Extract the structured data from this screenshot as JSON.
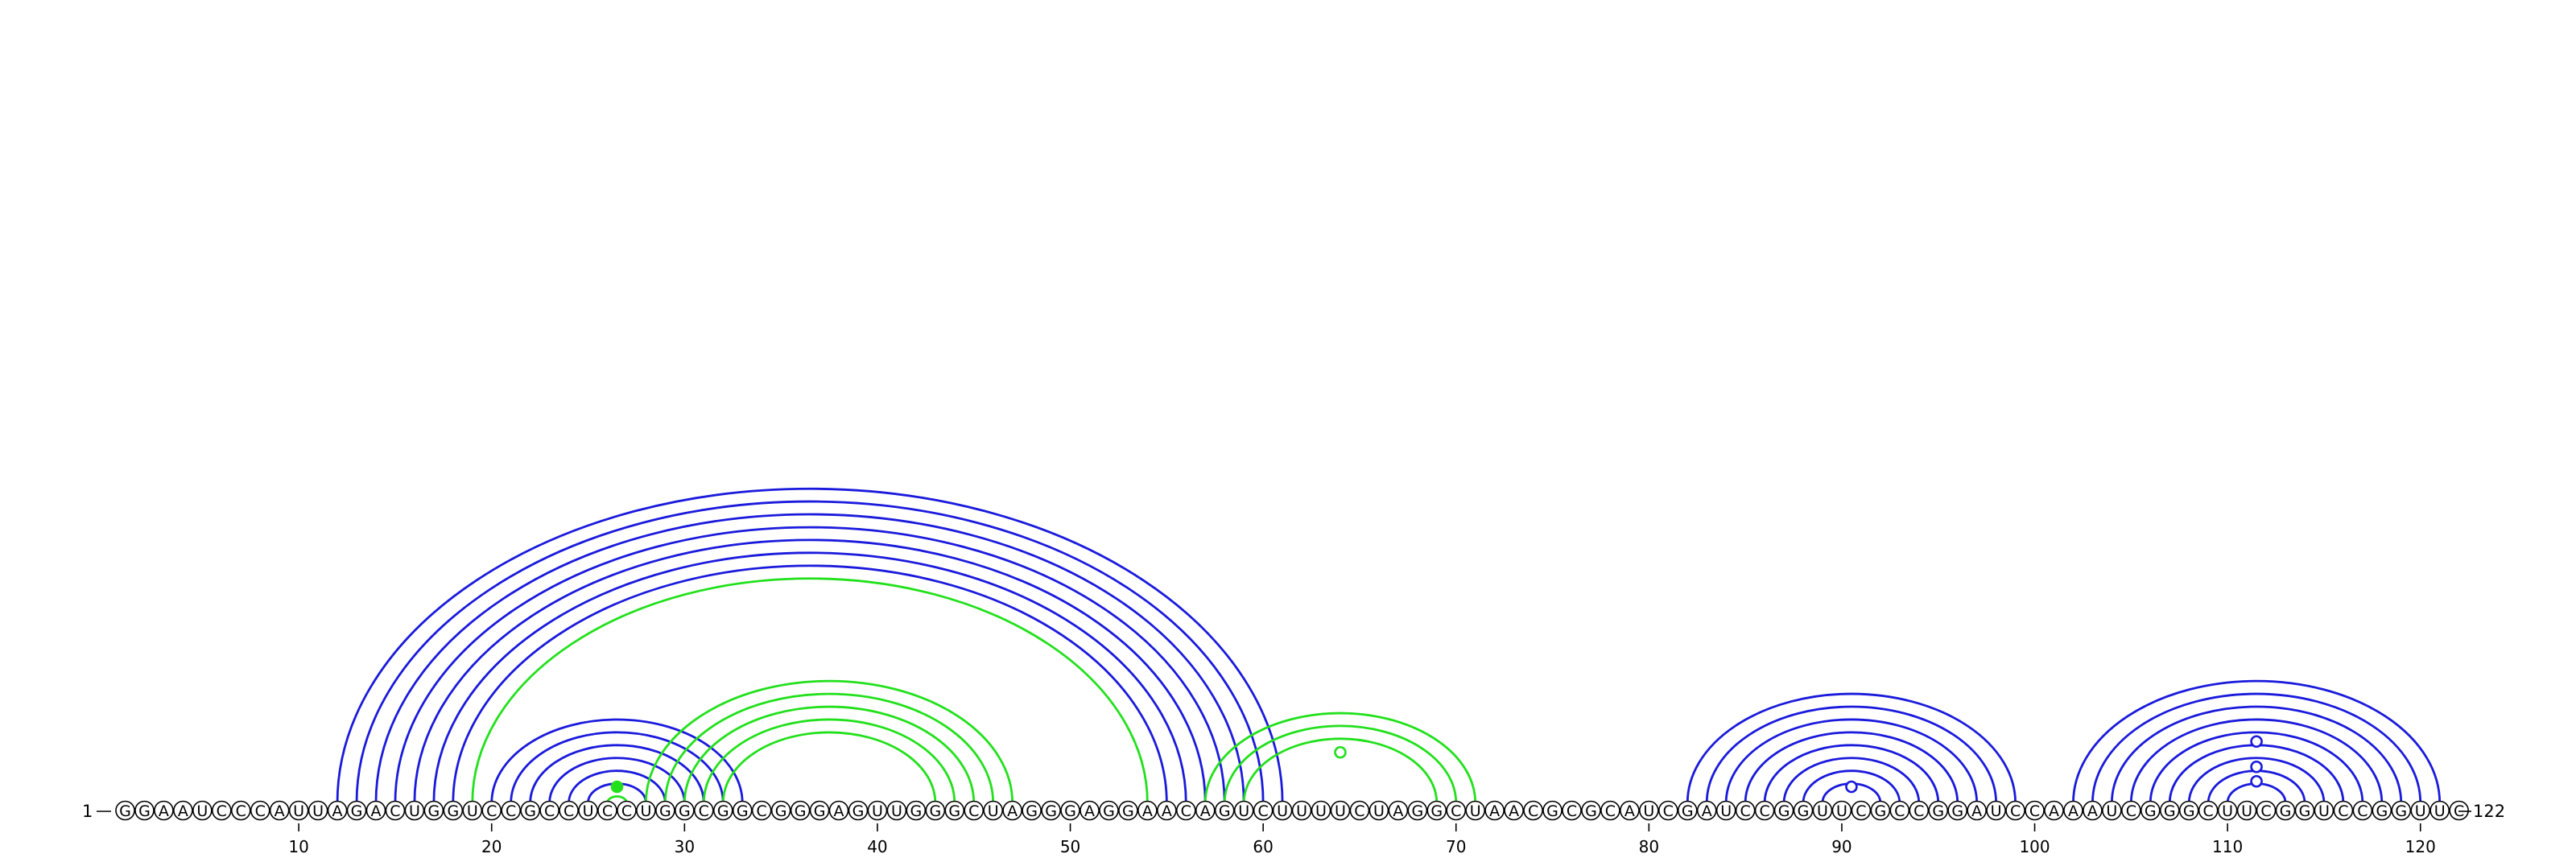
{
  "sequence": "GGAAUCCCAUUAGACUGGUCCGCCUCCUGGCGGCGGGAGUUGGGCUAGGGAGGAACAGUCUUUUCUAGGCUAACGCGCAUCGAUCCGGUUCGCCGGAUCCAAAUCGGGCUUCGGUCCGGUUC",
  "start_label": "1",
  "end_label": "122",
  "ticks": [
    "10",
    "20",
    "30",
    "40",
    "50",
    "60",
    "70",
    "80",
    "90",
    "100",
    "110",
    "120"
  ],
  "colors": {
    "blue": "#1a1adc",
    "green": "#22e01c",
    "line": "#000000"
  },
  "arc_groups": [
    {
      "color": "blue",
      "pairs": [
        [
          12,
          61
        ],
        [
          13,
          60
        ],
        [
          14,
          59
        ],
        [
          15,
          58
        ],
        [
          16,
          57
        ],
        [
          17,
          56
        ],
        [
          18,
          55
        ]
      ]
    },
    {
      "color": "green",
      "pairs": [
        [
          19,
          54
        ]
      ]
    },
    {
      "color": "blue",
      "pairs": [
        [
          20,
          33
        ],
        [
          21,
          32
        ],
        [
          22,
          31
        ],
        [
          23,
          30
        ],
        [
          24,
          29
        ],
        [
          25,
          28
        ]
      ]
    },
    {
      "color": "green",
      "pairs": [
        [
          26,
          27
        ]
      ]
    },
    {
      "color": "green",
      "pairs": [
        [
          28,
          47
        ],
        [
          29,
          46
        ],
        [
          30,
          45
        ],
        [
          31,
          44
        ],
        [
          32,
          43
        ]
      ]
    },
    {
      "color": "green",
      "pairs": [
        [
          57,
          71
        ],
        [
          58,
          70
        ],
        [
          59,
          69
        ]
      ]
    },
    {
      "color": "blue",
      "pairs": [
        [
          82,
          99
        ],
        [
          83,
          98
        ],
        [
          84,
          97
        ],
        [
          85,
          96
        ],
        [
          86,
          95
        ],
        [
          87,
          94
        ],
        [
          88,
          93
        ],
        [
          89,
          92
        ]
      ]
    },
    {
      "color": "blue",
      "pairs": [
        [
          102,
          121
        ],
        [
          103,
          120
        ],
        [
          104,
          119
        ],
        [
          105,
          118
        ],
        [
          106,
          117
        ],
        [
          107,
          116
        ],
        [
          108,
          115
        ],
        [
          109,
          114
        ],
        [
          110,
          113
        ]
      ]
    }
  ],
  "markers": [
    {
      "pos": 26.5,
      "height": 0.0,
      "color": "green",
      "filled": true
    },
    {
      "pos": 64.0,
      "height": 0.95,
      "color": "green",
      "filled": false
    },
    {
      "pos": 90.5,
      "height": 0.0,
      "color": "blue",
      "filled": false
    },
    {
      "pos": 111.5,
      "height": 0.15,
      "color": "blue",
      "filled": false
    },
    {
      "pos": 111.5,
      "height": 0.55,
      "color": "blue",
      "filled": false
    },
    {
      "pos": 111.5,
      "height": 1.25,
      "color": "blue",
      "filled": false
    }
  ]
}
